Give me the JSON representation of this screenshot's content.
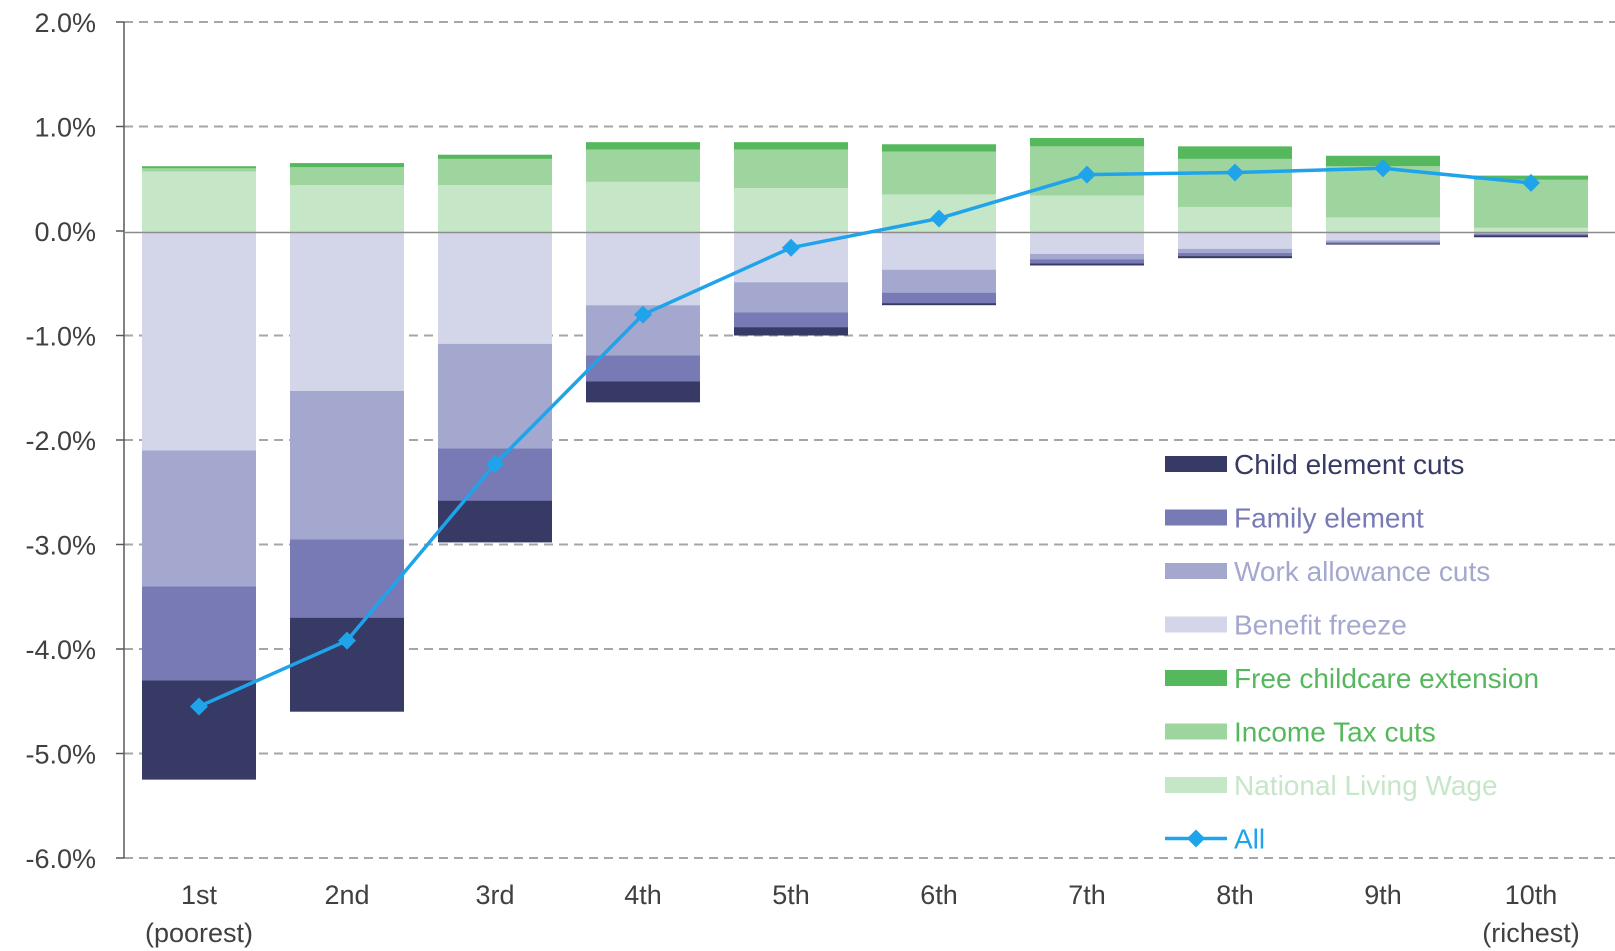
{
  "chart_data": {
    "type": "bar",
    "stacked": true,
    "title": "",
    "xlabel": "",
    "ylabel": "",
    "categories": [
      {
        "line1": "1st",
        "line2": "(poorest)"
      },
      {
        "line1": "2nd",
        "line2": ""
      },
      {
        "line1": "3rd",
        "line2": ""
      },
      {
        "line1": "4th",
        "line2": ""
      },
      {
        "line1": "5th",
        "line2": ""
      },
      {
        "line1": "6th",
        "line2": ""
      },
      {
        "line1": "7th",
        "line2": ""
      },
      {
        "line1": "8th",
        "line2": ""
      },
      {
        "line1": "9th",
        "line2": ""
      },
      {
        "line1": "10th",
        "line2": "(richest)"
      }
    ],
    "ylim": [
      -6.0,
      2.0
    ],
    "yticks": [
      2.0,
      1.0,
      0.0,
      -1.0,
      -2.0,
      -3.0,
      -4.0,
      -5.0,
      -6.0
    ],
    "ytick_labels": [
      "2.0%",
      "1.0%",
      "0.0%",
      "-1.0%",
      "-2.0%",
      "-3.0%",
      "-4.0%",
      "-5.0%",
      "-6.0%"
    ],
    "grid": true,
    "legend_position": "bottom-right",
    "negative_series": [
      {
        "name": "Benefit freeze",
        "color": "#d3d6e9",
        "values": [
          -2.1,
          -1.53,
          -1.08,
          -0.71,
          -0.49,
          -0.37,
          -0.22,
          -0.17,
          -0.09,
          -0.02
        ]
      },
      {
        "name": "Work allowance cuts",
        "color": "#a4a8cf",
        "values": [
          -1.3,
          -1.42,
          -1.0,
          -0.48,
          -0.29,
          -0.22,
          -0.05,
          -0.04,
          -0.02,
          -0.01
        ]
      },
      {
        "name": "Family element",
        "color": "#777ab5",
        "values": [
          -0.9,
          -0.75,
          -0.5,
          -0.25,
          -0.14,
          -0.1,
          -0.04,
          -0.03,
          -0.01,
          -0.01
        ]
      },
      {
        "name": "Child element cuts",
        "color": "#363a65",
        "values": [
          -0.95,
          -0.9,
          -0.4,
          -0.2,
          -0.08,
          -0.02,
          -0.02,
          -0.02,
          -0.01,
          -0.02
        ]
      }
    ],
    "positive_series": [
      {
        "name": "National Living Wage",
        "color": "#c6e6c8",
        "values": [
          0.57,
          0.44,
          0.44,
          0.47,
          0.41,
          0.35,
          0.34,
          0.23,
          0.13,
          0.03
        ]
      },
      {
        "name": "Income Tax cuts",
        "color": "#9ed59f",
        "values": [
          0.03,
          0.17,
          0.25,
          0.31,
          0.37,
          0.41,
          0.47,
          0.46,
          0.49,
          0.46
        ]
      },
      {
        "name": "Free childcare extension",
        "color": "#56b85c",
        "values": [
          0.02,
          0.04,
          0.04,
          0.07,
          0.07,
          0.07,
          0.08,
          0.12,
          0.1,
          0.04
        ]
      }
    ],
    "line_series": {
      "name": "All",
      "color": "#1fa3ea",
      "values": [
        -4.55,
        -3.92,
        -2.23,
        -0.8,
        -0.16,
        0.12,
        0.54,
        0.56,
        0.6,
        0.46
      ]
    },
    "legend": [
      {
        "label": "Child element cuts",
        "swatch": "#363a65",
        "text_color": "#363a65",
        "kind": "bar"
      },
      {
        "label": "Family element",
        "swatch": "#777ab5",
        "text_color": "#777ab5",
        "kind": "bar"
      },
      {
        "label": "Work allowance cuts",
        "swatch": "#a4a8cf",
        "text_color": "#a4a8cf",
        "kind": "bar"
      },
      {
        "label": "Benefit freeze",
        "swatch": "#d3d6e9",
        "text_color": "#a4a8cf",
        "kind": "bar"
      },
      {
        "label": "Free childcare extension",
        "swatch": "#56b85c",
        "text_color": "#56b85c",
        "kind": "bar"
      },
      {
        "label": "Income Tax cuts",
        "swatch": "#9ed59f",
        "text_color": "#56b85c",
        "kind": "bar"
      },
      {
        "label": "National Living Wage",
        "swatch": "#c6e6c8",
        "text_color": "#c6e6c8",
        "kind": "bar"
      },
      {
        "label": "All",
        "swatch": "#1fa3ea",
        "text_color": "#1fa3ea",
        "kind": "line"
      }
    ]
  }
}
